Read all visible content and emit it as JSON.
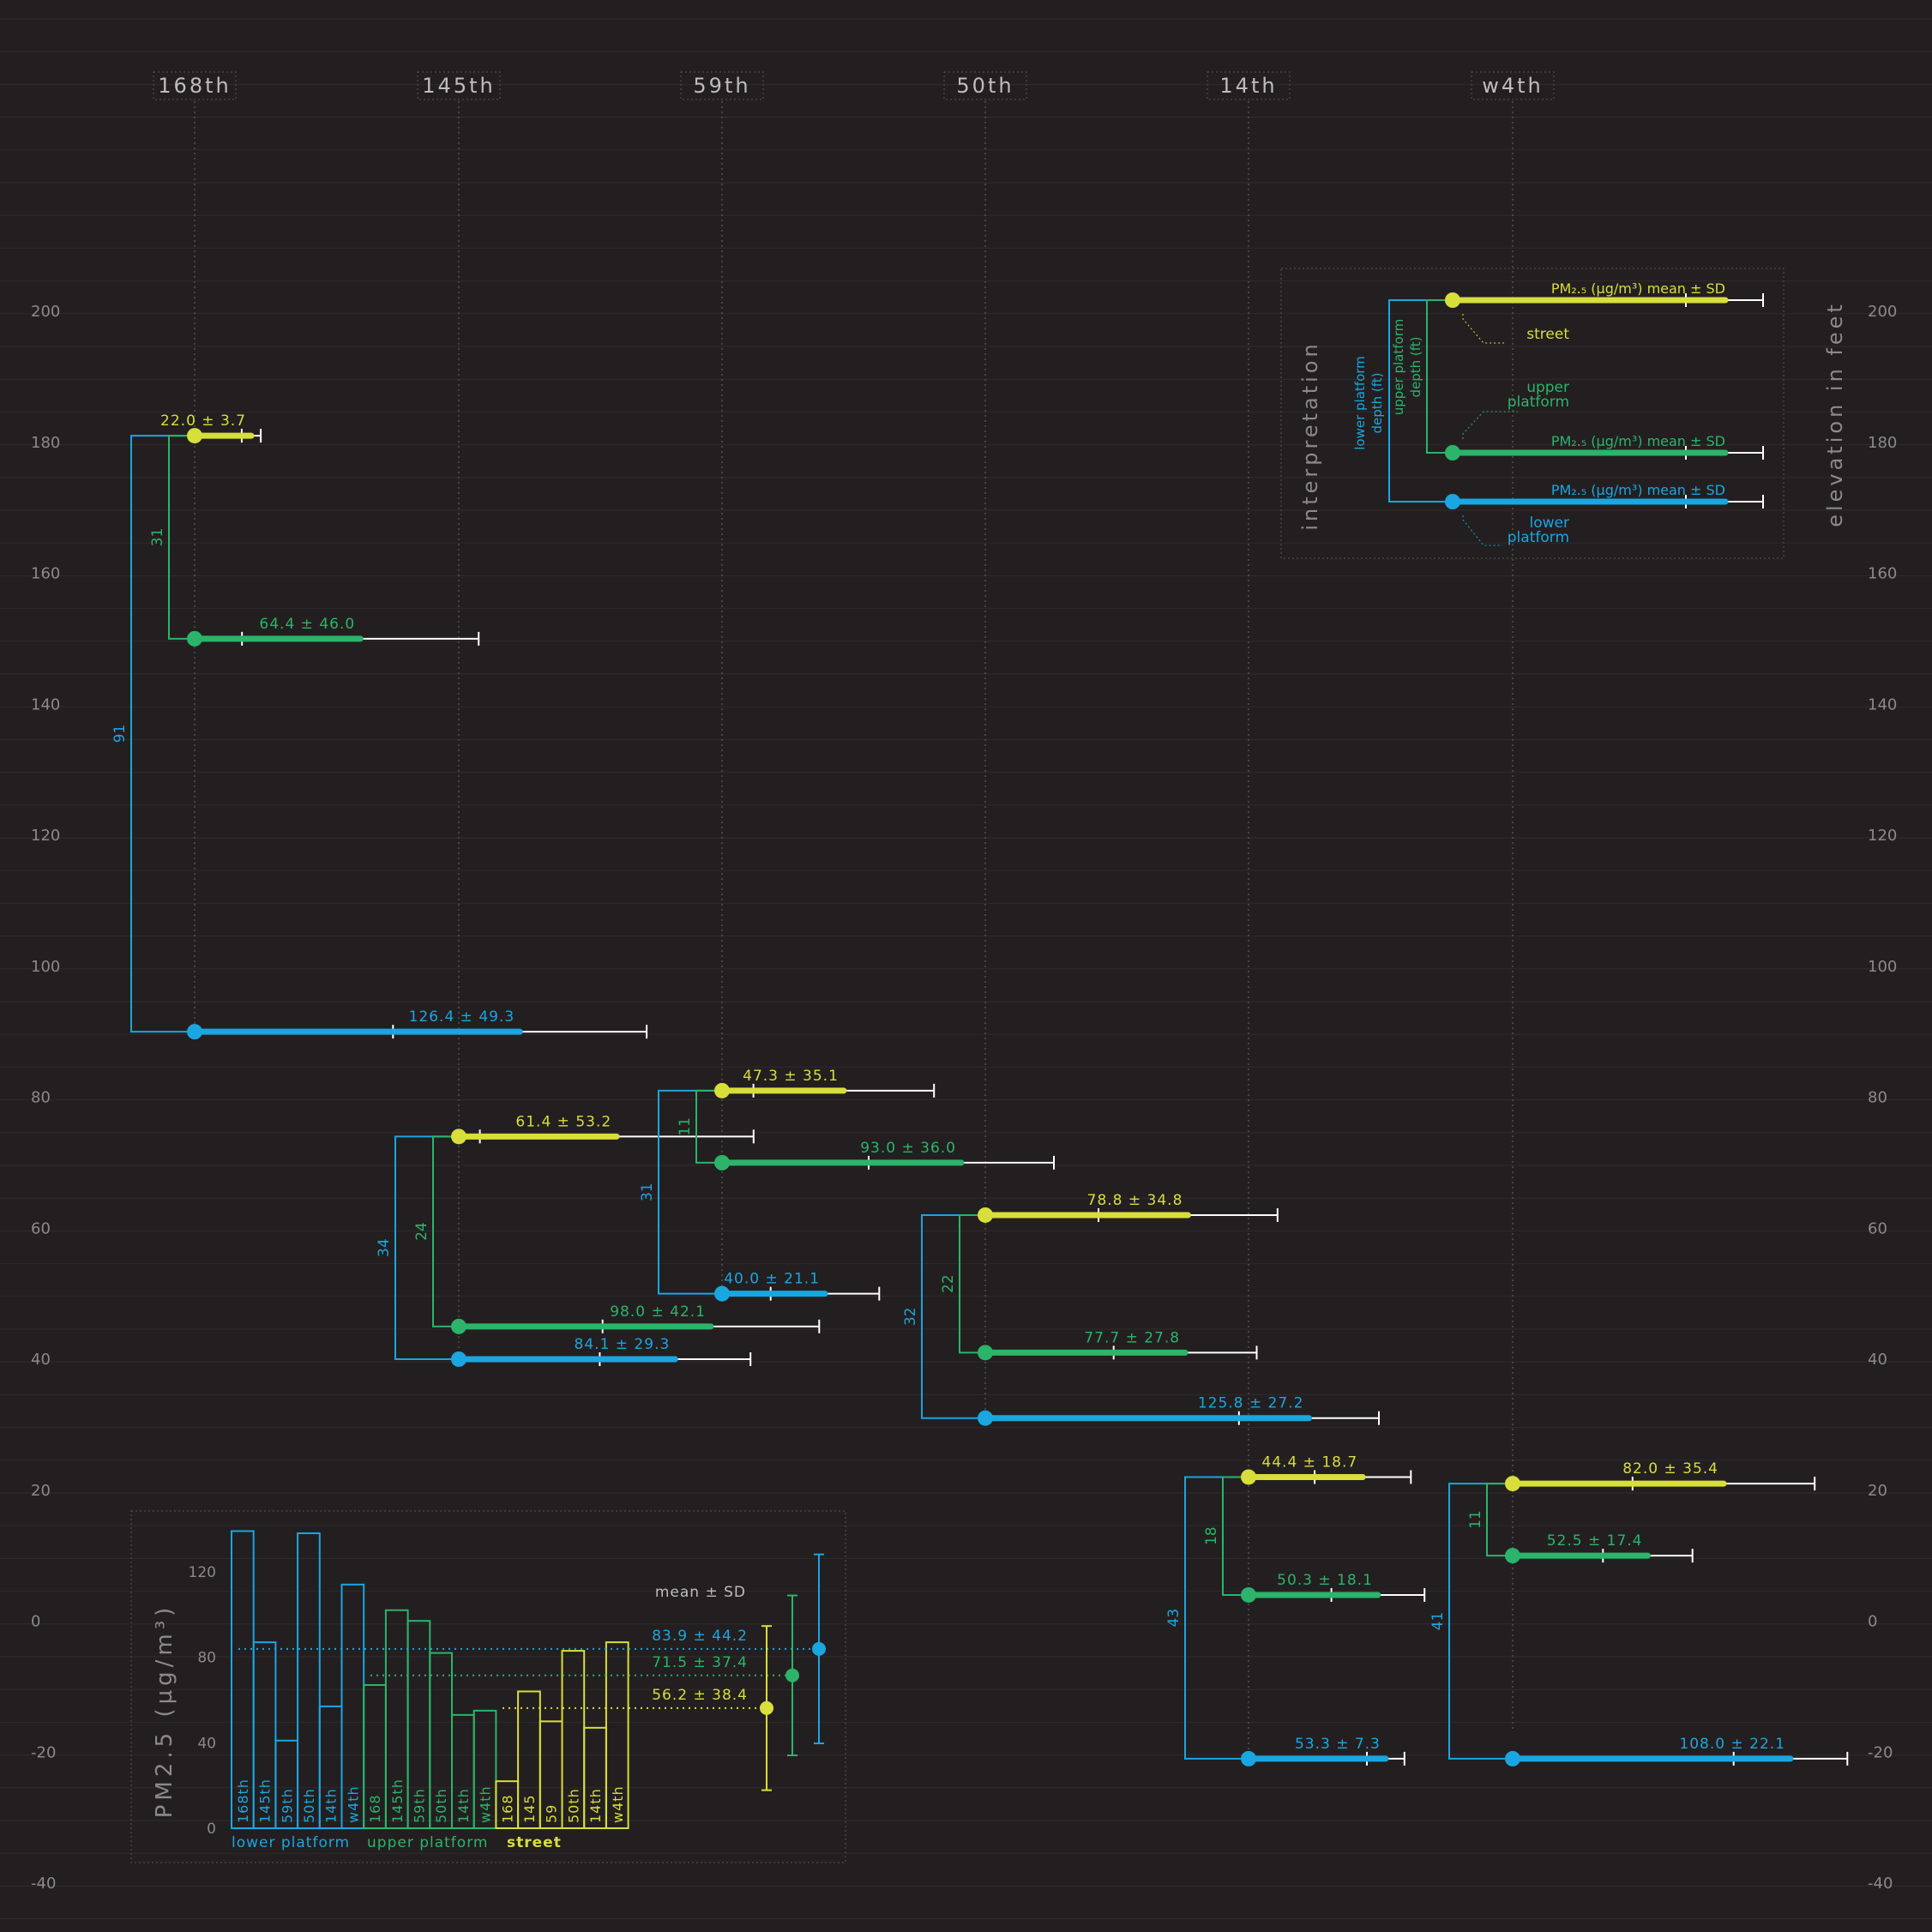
{
  "colors": {
    "background": "#231f20",
    "lower": "#1aa6e0",
    "upper": "#2bb46a",
    "street": "#d8de3a",
    "axis_text": "#8a8a8a",
    "grid": "#302c2d",
    "error_bar": "#ffffff",
    "station_line": "#6a6a6a"
  },
  "chart_data": [
    {
      "type": "dot-plot",
      "xlabel": "",
      "ylabel": "elevation in feet",
      "ylim": [
        -40,
        200
      ],
      "yticks": [
        -40,
        -20,
        0,
        20,
        40,
        60,
        80,
        100,
        120,
        140,
        160,
        180,
        200
      ],
      "x_unit_note": "PM2.5 (µg/m³) mean ± SD drawn horizontally from each station",
      "stations": [
        {
          "name": "168th",
          "levels": [
            {
              "level": "street",
              "elevation": 181,
              "mean": 22.0,
              "sd": 3.7,
              "label": "22.0 ± 3.7"
            },
            {
              "level": "upper",
              "elevation": 150,
              "mean": 64.4,
              "sd": 46.0,
              "label": "64.4  ± 46.0"
            },
            {
              "level": "lower",
              "elevation": 90,
              "mean": 126.4,
              "sd": 49.3,
              "label": "126.4 ± 49.3"
            }
          ],
          "depths": {
            "upper": "31",
            "lower": "91"
          }
        },
        {
          "name": "145th",
          "levels": [
            {
              "level": "street",
              "elevation": 74,
              "mean": 61.4,
              "sd": 53.2,
              "label": "61.4 ± 53.2"
            },
            {
              "level": "upper",
              "elevation": 45,
              "mean": 98.0,
              "sd": 42.1,
              "label": "98.0 ± 42.1"
            },
            {
              "level": "lower",
              "elevation": 40,
              "mean": 84.1,
              "sd": 29.3,
              "label": "84.1 ± 29.3"
            }
          ],
          "depths": {
            "upper": "24",
            "lower": "34"
          }
        },
        {
          "name": "59th",
          "levels": [
            {
              "level": "street",
              "elevation": 81,
              "mean": 47.3,
              "sd": 35.1,
              "label": "47.3 ± 35.1"
            },
            {
              "level": "upper",
              "elevation": 70,
              "mean": 93.0,
              "sd": 36.0,
              "label": "93.0 ± 36.0"
            },
            {
              "level": "lower",
              "elevation": 50,
              "mean": 40.0,
              "sd": 21.1,
              "label": "40.0 ± 21.1"
            }
          ],
          "depths": {
            "upper": "11",
            "lower": "31"
          }
        },
        {
          "name": "50th",
          "levels": [
            {
              "level": "street",
              "elevation": 62,
              "mean": 78.8,
              "sd": 34.8,
              "label": "78.8 ± 34.8"
            },
            {
              "level": "upper",
              "elevation": 41,
              "mean": 77.7,
              "sd": 27.8,
              "label": "77.7 ± 27.8"
            },
            {
              "level": "lower",
              "elevation": 31,
              "mean": 125.8,
              "sd": 27.2,
              "label": "125.8 ± 27.2"
            }
          ],
          "depths": {
            "upper": "22",
            "lower": "32"
          }
        },
        {
          "name": "14th",
          "levels": [
            {
              "level": "street",
              "elevation": 22,
              "mean": 44.4,
              "sd": 18.7,
              "label": "44.4 ± 18.7"
            },
            {
              "level": "upper",
              "elevation": 4,
              "mean": 50.3,
              "sd": 18.1,
              "label": "50.3 ± 18.1"
            },
            {
              "level": "lower",
              "elevation": -21,
              "mean": 53.3,
              "sd": 7.3,
              "label": "53.3 ± 7.3"
            }
          ],
          "depths": {
            "upper": "18",
            "lower": "43"
          }
        },
        {
          "name": "w4th",
          "levels": [
            {
              "level": "street",
              "elevation": 21,
              "mean": 82.0,
              "sd": 35.4,
              "label": "82.0 ± 35.4"
            },
            {
              "level": "upper",
              "elevation": 10,
              "mean": 52.5,
              "sd": 17.4,
              "label": "52.5 ± 17.4"
            },
            {
              "level": "lower",
              "elevation": -21,
              "mean": 108.0,
              "sd": 22.1,
              "label": "108.0 ± 22.1"
            }
          ],
          "depths": {
            "upper": "11",
            "lower": "41"
          }
        }
      ]
    },
    {
      "type": "bar",
      "ylabel": "PM2.5 (µg/m³)",
      "ylim": [
        0,
        140
      ],
      "yticks": [
        0,
        40,
        80,
        120
      ],
      "series": [
        {
          "name": "lower platform",
          "level": "lower",
          "categories": [
            "168th",
            "145th",
            "59th",
            "50th",
            "14th",
            "w4th"
          ],
          "values": [
            139,
            87,
            41,
            138,
            57,
            114
          ]
        },
        {
          "name": "upper platform",
          "level": "upper",
          "categories": [
            "168",
            "145th",
            "59th",
            "50th",
            "14th",
            "w4th"
          ],
          "values": [
            67,
            102,
            97,
            82,
            53,
            55
          ]
        },
        {
          "name": "street",
          "level": "street",
          "categories": [
            "168",
            "145",
            "59",
            "50th",
            "14th",
            "w4th"
          ],
          "values": [
            22,
            64,
            50,
            83,
            47,
            87
          ]
        }
      ],
      "summary_title": "mean ± SD",
      "summary": [
        {
          "level": "lower",
          "mean": 83.9,
          "sd": 44.2,
          "label": "83.9 ± 44.2"
        },
        {
          "level": "upper",
          "mean": 71.5,
          "sd": 37.4,
          "label": "71.5 ± 37.4"
        },
        {
          "level": "street",
          "mean": 56.2,
          "sd": 38.4,
          "label": "56.2 ± 38.4"
        }
      ]
    }
  ],
  "legend": {
    "title": "interpretation",
    "pm_label": "PM₂.₅ (µg/m³) mean ± SD",
    "street": "street",
    "upper_line1": "upper",
    "upper_line2": "platform",
    "lower_line1": "lower",
    "lower_line2": "platform",
    "lower_depth_line1": "lower platform",
    "lower_depth_line2": "depth (ft)",
    "upper_depth_line1": "upper platform",
    "upper_depth_line2": "depth (ft)"
  }
}
